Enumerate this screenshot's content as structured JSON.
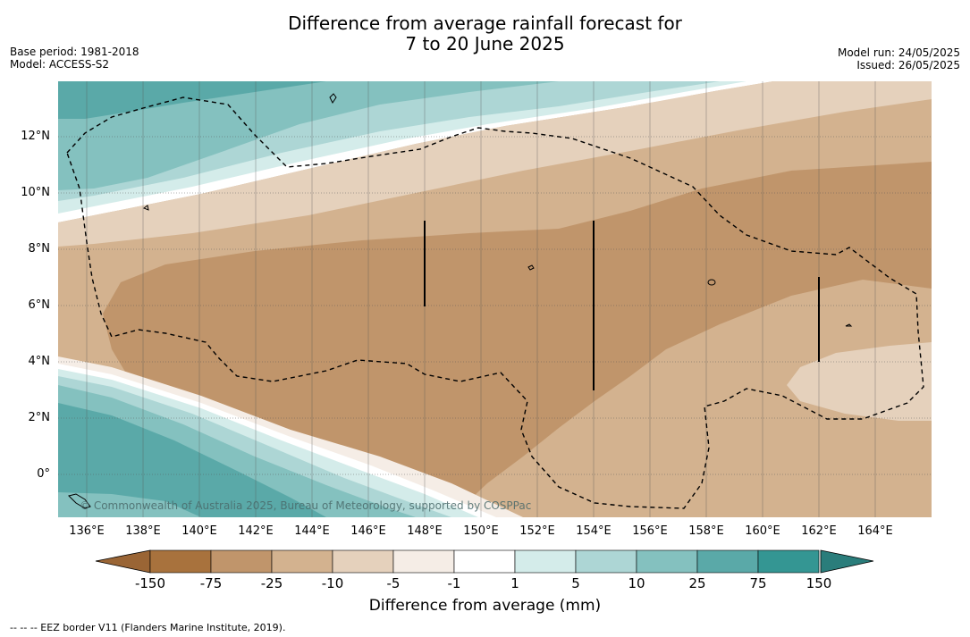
{
  "title": {
    "line1": "Difference from average rainfall forecast for",
    "line2": "7 to 20 June 2025"
  },
  "meta_left": {
    "base_period": "Base period: 1981-2018",
    "model": "Model: ACCESS-S2"
  },
  "meta_right": {
    "model_run": "Model run: 24/05/2025",
    "issued": "Issued: 26/05/2025"
  },
  "map": {
    "lat_ticks": [
      "12°N",
      "10°N",
      "8°N",
      "6°N",
      "4°N",
      "2°N",
      "0°"
    ],
    "lon_ticks": [
      "136°E",
      "138°E",
      "140°E",
      "142°E",
      "144°E",
      "146°E",
      "148°E",
      "150°E",
      "152°E",
      "154°E",
      "156°E",
      "158°E",
      "160°E",
      "162°E",
      "164°E"
    ],
    "copyright": "© Commonwealth of Australia 2025, Bureau of Meteorology, supported by COSPPac",
    "colors": {
      "c_m150": "#a8723d",
      "c_m75": "#c0956b",
      "c_m25": "#d3b28f",
      "c_m10": "#e5d1bc",
      "c_m5": "#f5ede6",
      "c_m1": "#ffffff",
      "c_1": "#d4ecea",
      "c_5": "#add6d5",
      "c_10": "#84c1bf",
      "c_25": "#5aa9a8",
      "c_75": "#349693",
      "c_150": "#2a7d7b"
    }
  },
  "colorbar": {
    "ticks": [
      "-150",
      "-75",
      "-25",
      "-10",
      "-5",
      "-1",
      "1",
      "5",
      "10",
      "25",
      "75",
      "150"
    ],
    "colors": [
      "#a8723d",
      "#c0956b",
      "#d3b28f",
      "#e5d1bc",
      "#f5ede6",
      "#ffffff",
      "#d4ecea",
      "#add6d5",
      "#84c1bf",
      "#5aa9a8",
      "#349693"
    ],
    "under_color": "#9a6535",
    "over_color": "#2a7d7b",
    "label": "Difference from average (mm)"
  },
  "footer": "--  --  -- EEZ border V11 (Flanders Marine Institute, 2019)."
}
